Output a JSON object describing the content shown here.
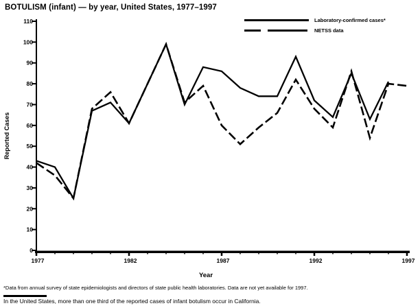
{
  "figure": {
    "title": "BOTULISM (infant) — by year, United States, 1977–1997",
    "footnote_data_source": "*Data from annual survey of state epidemiologists and directors of state public health laboratories. Data are not yet available for 1997.",
    "note_california": "In the United States, more than one third of the reported cases of infant botulism occur in California."
  },
  "chart_data": {
    "type": "line",
    "title": "BOTULISM (infant) — by year, United States, 1977–1997",
    "xlabel": "Year",
    "ylabel": "Reported Cases",
    "ylim": [
      0,
      110
    ],
    "ytick_step": 10,
    "grid": false,
    "legend_position": "top-right",
    "x": [
      1977,
      1978,
      1979,
      1980,
      1981,
      1982,
      1983,
      1984,
      1985,
      1986,
      1987,
      1988,
      1989,
      1990,
      1991,
      1992,
      1993,
      1994,
      1995,
      1996,
      1997
    ],
    "xticks_labeled": [
      1977,
      1982,
      1987,
      1992,
      1997
    ],
    "series": [
      {
        "name": "Laboratory-confirmed cases*",
        "line_style": "solid",
        "color": "#000000",
        "values": [
          43,
          40,
          25,
          67,
          71,
          61,
          80,
          99,
          70,
          88,
          86,
          78,
          74,
          74,
          93,
          72,
          64,
          85,
          63,
          81,
          null
        ]
      },
      {
        "name": "NETSS data",
        "line_style": "long-dash",
        "color": "#000000",
        "values": [
          42,
          36,
          25,
          68,
          76,
          61,
          80,
          99,
          71,
          79,
          60,
          51,
          59,
          66,
          82,
          68,
          59,
          86,
          54,
          80,
          79
        ]
      }
    ]
  },
  "colors": {
    "foreground": "#000000",
    "background": "#ffffff"
  }
}
